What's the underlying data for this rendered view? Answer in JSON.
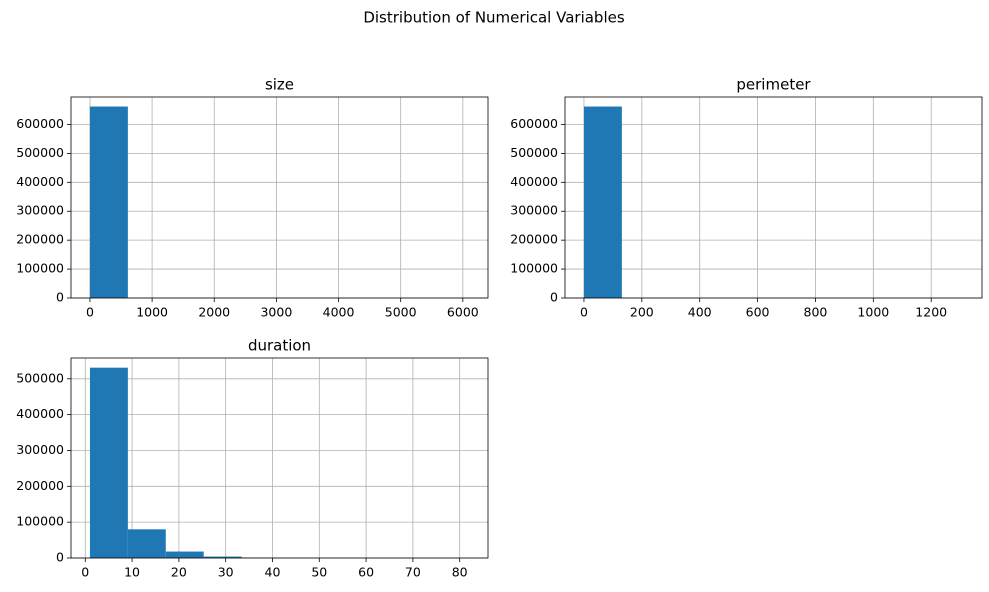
{
  "title": "Distribution of Numerical Variables",
  "chart_data": [
    {
      "type": "histogram",
      "title": "size",
      "color": "#1f77b4",
      "grid": true,
      "bins": [
        0,
        610,
        1220,
        1830,
        2440,
        3050,
        3660,
        4270,
        4880,
        5490,
        6100
      ],
      "values": [
        662000,
        300,
        100,
        50,
        20,
        10,
        5,
        3,
        2,
        1
      ],
      "xlim": [
        -305,
        6405
      ],
      "xticks": [
        0,
        1000,
        2000,
        3000,
        4000,
        5000,
        6000
      ],
      "ylim": [
        0,
        695000
      ],
      "yticks": [
        0,
        100000,
        200000,
        300000,
        400000,
        500000,
        600000
      ]
    },
    {
      "type": "histogram",
      "title": "perimeter",
      "color": "#1f77b4",
      "grid": true,
      "bins": [
        0,
        131,
        262,
        393,
        524,
        655,
        786,
        917,
        1048,
        1179,
        1310
      ],
      "values": [
        662000,
        300,
        100,
        50,
        20,
        10,
        5,
        3,
        2,
        1
      ],
      "xlim": [
        -65.5,
        1375.5
      ],
      "xticks": [
        0,
        200,
        400,
        600,
        800,
        1000,
        1200
      ],
      "ylim": [
        0,
        695000
      ],
      "yticks": [
        0,
        100000,
        200000,
        300000,
        400000,
        500000,
        600000
      ]
    },
    {
      "type": "histogram",
      "title": "duration",
      "color": "#1f77b4",
      "grid": true,
      "bins": [
        1,
        9.1,
        17.2,
        25.3,
        33.4,
        41.5,
        49.6,
        57.7,
        65.8,
        73.9,
        82
      ],
      "values": [
        531000,
        80000,
        18000,
        4000,
        800,
        200,
        100,
        50,
        20,
        10
      ],
      "xlim": [
        -3.05,
        86.05
      ],
      "xticks": [
        0,
        10,
        20,
        30,
        40,
        50,
        60,
        70,
        80
      ],
      "ylim": [
        0,
        558000
      ],
      "yticks": [
        0,
        100000,
        200000,
        300000,
        400000,
        500000
      ]
    }
  ]
}
